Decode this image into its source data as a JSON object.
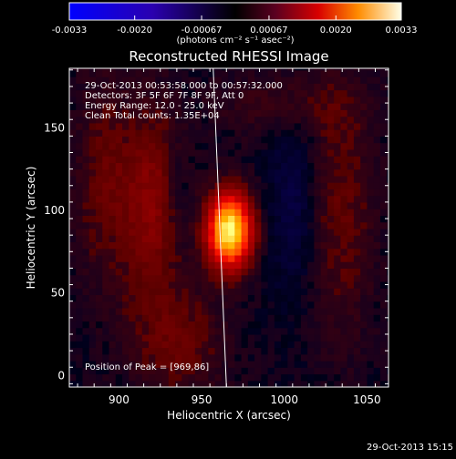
{
  "chart_data": {
    "type": "heatmap",
    "title": "Reconstructed RHESSI Image",
    "xlabel": "Heliocentric X (arcsec)",
    "ylabel": "Heliocentric Y (arcsec)",
    "xlim": [
      870,
      1063
    ],
    "ylim": [
      -7,
      186
    ],
    "x_ticks": [
      900,
      950,
      1000,
      1050
    ],
    "y_ticks": [
      0,
      50,
      100,
      150
    ],
    "colorbar": {
      "min": -0.0033,
      "max": 0.0033,
      "ticks": [
        "-0.0033",
        "-0.0020",
        "-0.00067",
        "0.00067",
        "0.0020",
        "0.0033"
      ],
      "units": "(photons cm⁻² s⁻¹ asec⁻²)"
    },
    "annotations": {
      "time_range": "29-Oct-2013 00:53:58.000 to 00:57:32.000",
      "detectors": "Detectors: 3F 5F 6F 7F 8F 9F, Att 0",
      "energy": "Energy Range: 12.0 - 25.0 keV",
      "clean": "Clean     Total counts: 1.35E+04",
      "peak": "Position of Peak = [969,86]"
    },
    "peak": {
      "x": 969,
      "y": 86
    },
    "limb_line": [
      [
        957,
        186
      ],
      [
        965,
        -7
      ]
    ],
    "blobs": [
      {
        "x": 967,
        "y": 88,
        "sx": 9,
        "sy": 15,
        "amp": 1.0
      },
      {
        "x": 920,
        "y": 105,
        "sx": 14,
        "sy": 40,
        "amp": 0.22
      },
      {
        "x": 890,
        "y": 120,
        "sx": 12,
        "sy": 45,
        "amp": 0.12
      },
      {
        "x": 935,
        "y": 20,
        "sx": 20,
        "sy": 25,
        "amp": 0.14
      },
      {
        "x": 1035,
        "y": 100,
        "sx": 14,
        "sy": 55,
        "amp": 0.13
      },
      {
        "x": 1000,
        "y": 165,
        "sx": 28,
        "sy": 14,
        "amp": 0.1
      },
      {
        "x": 1005,
        "y": 105,
        "sx": 10,
        "sy": 40,
        "amp": -0.12
      },
      {
        "x": 935,
        "y": 110,
        "sx": 6,
        "sy": 25,
        "amp": -0.08
      }
    ]
  },
  "footer": {
    "timestamp": "29-Oct-2013 15:15"
  }
}
